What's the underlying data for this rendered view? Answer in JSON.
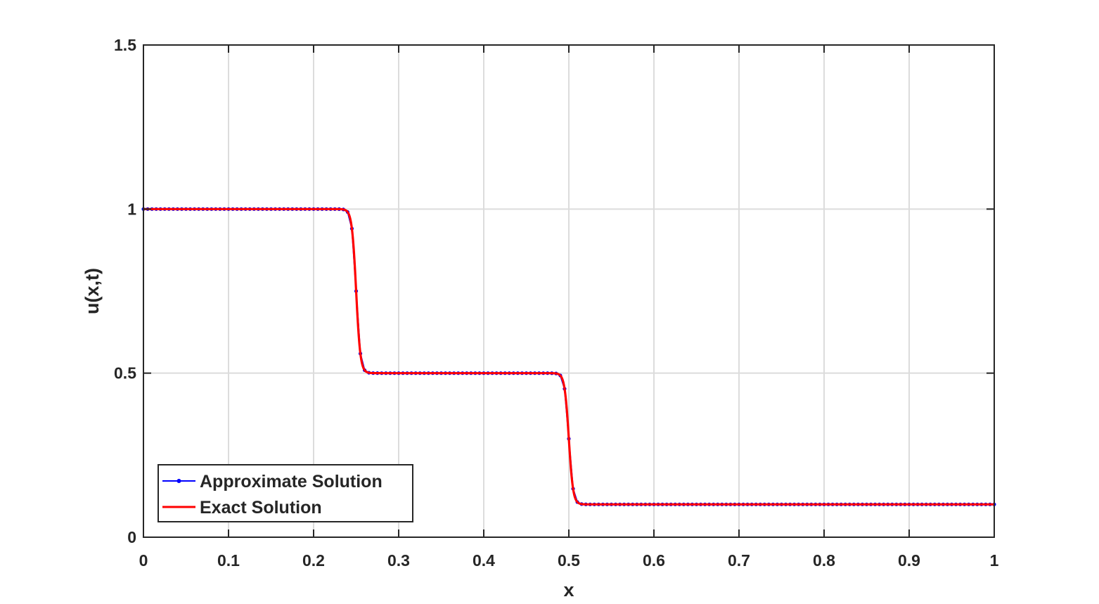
{
  "chart_data": {
    "type": "line",
    "xlabel": "x",
    "ylabel": "u(x,t)",
    "xlim": [
      0,
      1
    ],
    "ylim": [
      0,
      1.5
    ],
    "xticks": [
      "0",
      "0.1",
      "0.2",
      "0.3",
      "0.4",
      "0.5",
      "0.6",
      "0.7",
      "0.8",
      "0.9",
      "1"
    ],
    "yticks": [
      "0",
      "0.5",
      "1",
      "1.5"
    ],
    "grid": true,
    "legend_position": "bottom-left",
    "series": [
      {
        "name": "Approximate Solution",
        "color": "#0000ff",
        "marker": "dot",
        "description": "sampled at steps of 0.005 along the exact profile",
        "x_start": 0,
        "x_end": 1,
        "x_step": 0.005
      },
      {
        "name": "Exact Solution",
        "color": "#ff0000",
        "marker": "none",
        "profile": {
          "levels": [
            1.0,
            0.5,
            0.1
          ],
          "front_positions": [
            0.25,
            0.5
          ],
          "front_width": 0.005
        }
      }
    ]
  }
}
